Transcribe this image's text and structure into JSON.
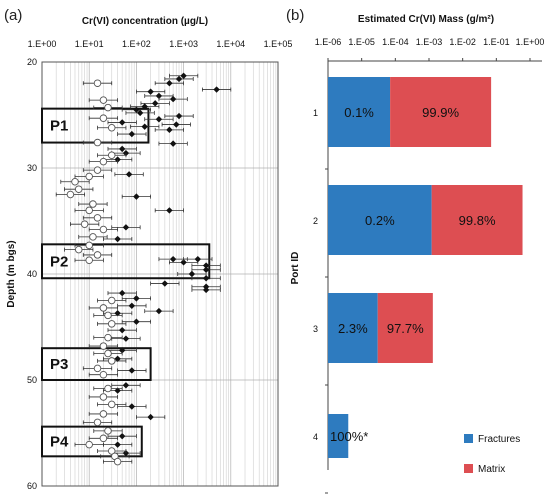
{
  "panel_a_label": "(a)",
  "panel_b_label": "(b)",
  "chart_data": [
    {
      "type": "scatter",
      "title": "",
      "xlabel": "Cr(VI) concentration (µg/L)",
      "ylabel": "Depth (m bgs)",
      "x_scale": "log",
      "x_ticks": [
        "1.E+00",
        "1.E+01",
        "1.E+02",
        "1.E+03",
        "1.E+04",
        "1.E+05"
      ],
      "xlim": [
        1,
        100000
      ],
      "y_ticks": [
        "20",
        "30",
        "40",
        "50",
        "60"
      ],
      "ylim": [
        20,
        60
      ],
      "y_inverted": true,
      "grid": true,
      "boxes": [
        {
          "label": "P1",
          "depth_top": 24.4,
          "depth_bottom": 27.6,
          "x_max": 180
        },
        {
          "label": "P2",
          "depth_top": 37.2,
          "depth_bottom": 40.4,
          "x_max": 3500
        },
        {
          "label": "P3",
          "depth_top": 47.0,
          "depth_bottom": 50.0,
          "x_max": 200
        },
        {
          "label": "P4",
          "depth_top": 54.4,
          "depth_bottom": 57.2,
          "x_max": 130
        }
      ],
      "series": [
        {
          "marker": "filled-diamond",
          "points": [
            {
              "x": 1000,
              "y": 21.3
            },
            {
              "x": 800,
              "y": 21.6
            },
            {
              "x": 500,
              "y": 22.0
            },
            {
              "x": 5000,
              "y": 22.6
            },
            {
              "x": 200,
              "y": 22.8
            },
            {
              "x": 300,
              "y": 23.2
            },
            {
              "x": 600,
              "y": 23.5
            },
            {
              "x": 250,
              "y": 23.9
            },
            {
              "x": 150,
              "y": 24.2
            },
            {
              "x": 100,
              "y": 24.5
            },
            {
              "x": 120,
              "y": 24.8
            },
            {
              "x": 800,
              "y": 25.1
            },
            {
              "x": 300,
              "y": 25.4
            },
            {
              "x": 50,
              "y": 25.7
            },
            {
              "x": 700,
              "y": 25.9
            },
            {
              "x": 150,
              "y": 26.1
            },
            {
              "x": 500,
              "y": 26.4
            },
            {
              "x": 80,
              "y": 26.8
            },
            {
              "x": 600,
              "y": 27.7
            },
            {
              "x": 50,
              "y": 28.2
            },
            {
              "x": 60,
              "y": 28.6
            },
            {
              "x": 40,
              "y": 29.2
            },
            {
              "x": 70,
              "y": 30.6
            },
            {
              "x": 100,
              "y": 32.7
            },
            {
              "x": 500,
              "y": 34.0
            },
            {
              "x": 60,
              "y": 35.6
            },
            {
              "x": 40,
              "y": 36.7
            },
            {
              "x": 600,
              "y": 38.6
            },
            {
              "x": 1000,
              "y": 38.9
            },
            {
              "x": 2000,
              "y": 38.6
            },
            {
              "x": 3000,
              "y": 39.2
            },
            {
              "x": 3000,
              "y": 39.6
            },
            {
              "x": 1500,
              "y": 40.0
            },
            {
              "x": 3000,
              "y": 40.4
            },
            {
              "x": 400,
              "y": 40.9
            },
            {
              "x": 3000,
              "y": 41.2
            },
            {
              "x": 3000,
              "y": 41.5
            },
            {
              "x": 50,
              "y": 41.8
            },
            {
              "x": 100,
              "y": 42.3
            },
            {
              "x": 80,
              "y": 43.0
            },
            {
              "x": 40,
              "y": 43.7
            },
            {
              "x": 300,
              "y": 43.5
            },
            {
              "x": 100,
              "y": 44.5
            },
            {
              "x": 50,
              "y": 45.3
            },
            {
              "x": 60,
              "y": 46.1
            },
            {
              "x": 50,
              "y": 47.2
            },
            {
              "x": 40,
              "y": 48.0
            },
            {
              "x": 80,
              "y": 49.1
            },
            {
              "x": 60,
              "y": 50.5
            },
            {
              "x": 40,
              "y": 51.0
            },
            {
              "x": 80,
              "y": 52.5
            },
            {
              "x": 200,
              "y": 53.5
            },
            {
              "x": 50,
              "y": 55.3
            },
            {
              "x": 40,
              "y": 56.1
            },
            {
              "x": 60,
              "y": 56.9
            }
          ]
        },
        {
          "marker": "open-circle",
          "points": [
            {
              "x": 15,
              "y": 22.0
            },
            {
              "x": 20,
              "y": 23.6
            },
            {
              "x": 25,
              "y": 24.3
            },
            {
              "x": 20,
              "y": 25.3
            },
            {
              "x": 30,
              "y": 26.2
            },
            {
              "x": 15,
              "y": 27.6
            },
            {
              "x": 30,
              "y": 28.8
            },
            {
              "x": 20,
              "y": 29.4
            },
            {
              "x": 15,
              "y": 30.2
            },
            {
              "x": 10,
              "y": 30.8
            },
            {
              "x": 5,
              "y": 31.3
            },
            {
              "x": 6,
              "y": 32.0
            },
            {
              "x": 4,
              "y": 32.5
            },
            {
              "x": 12,
              "y": 33.4
            },
            {
              "x": 10,
              "y": 34.0
            },
            {
              "x": 15,
              "y": 34.7
            },
            {
              "x": 8,
              "y": 35.3
            },
            {
              "x": 20,
              "y": 35.8
            },
            {
              "x": 12,
              "y": 36.5
            },
            {
              "x": 10,
              "y": 37.3
            },
            {
              "x": 6,
              "y": 37.7
            },
            {
              "x": 15,
              "y": 38.2
            },
            {
              "x": 10,
              "y": 38.7
            },
            {
              "x": 30,
              "y": 42.5
            },
            {
              "x": 20,
              "y": 43.2
            },
            {
              "x": 25,
              "y": 43.9
            },
            {
              "x": 30,
              "y": 44.7
            },
            {
              "x": 25,
              "y": 46.0
            },
            {
              "x": 20,
              "y": 46.8
            },
            {
              "x": 25,
              "y": 47.5
            },
            {
              "x": 30,
              "y": 48.2
            },
            {
              "x": 15,
              "y": 48.9
            },
            {
              "x": 20,
              "y": 49.5
            },
            {
              "x": 25,
              "y": 50.8
            },
            {
              "x": 20,
              "y": 51.6
            },
            {
              "x": 30,
              "y": 52.3
            },
            {
              "x": 20,
              "y": 53.2
            },
            {
              "x": 15,
              "y": 54.0
            },
            {
              "x": 25,
              "y": 54.8
            },
            {
              "x": 20,
              "y": 55.5
            },
            {
              "x": 10,
              "y": 56.1
            },
            {
              "x": 30,
              "y": 56.7
            },
            {
              "x": 35,
              "y": 57.2
            },
            {
              "x": 40,
              "y": 57.7
            }
          ]
        }
      ]
    },
    {
      "type": "bar",
      "orientation": "horizontal",
      "stacked": true,
      "title": "Estimated Cr(VI) Mass (g/m²)",
      "xlabel": "",
      "ylabel": "Port ID",
      "x_scale": "log",
      "x_ticks": [
        "1.E-06",
        "1.E-05",
        "1.E-04",
        "1.E-03",
        "1.E-02",
        "1.E-01",
        "1.E+00"
      ],
      "xlim": [
        1e-06,
        1
      ],
      "categories": [
        "1",
        "2",
        "3",
        "4"
      ],
      "legend_position": "bottom-right",
      "series": [
        {
          "name": "Fractures",
          "color": "#2e7bbf",
          "values": [
            7e-05,
            0.0012,
            3e-05,
            4e-06
          ],
          "labels": [
            "0.1%",
            "0.2%",
            "2.3%",
            "100%*"
          ]
        },
        {
          "name": "Matrix",
          "color": "#dd4e52",
          "values": [
            0.07,
            0.6,
            0.0013,
            0
          ],
          "labels": [
            "99.9%",
            "99.8%",
            "97.7%",
            ""
          ]
        }
      ]
    }
  ]
}
